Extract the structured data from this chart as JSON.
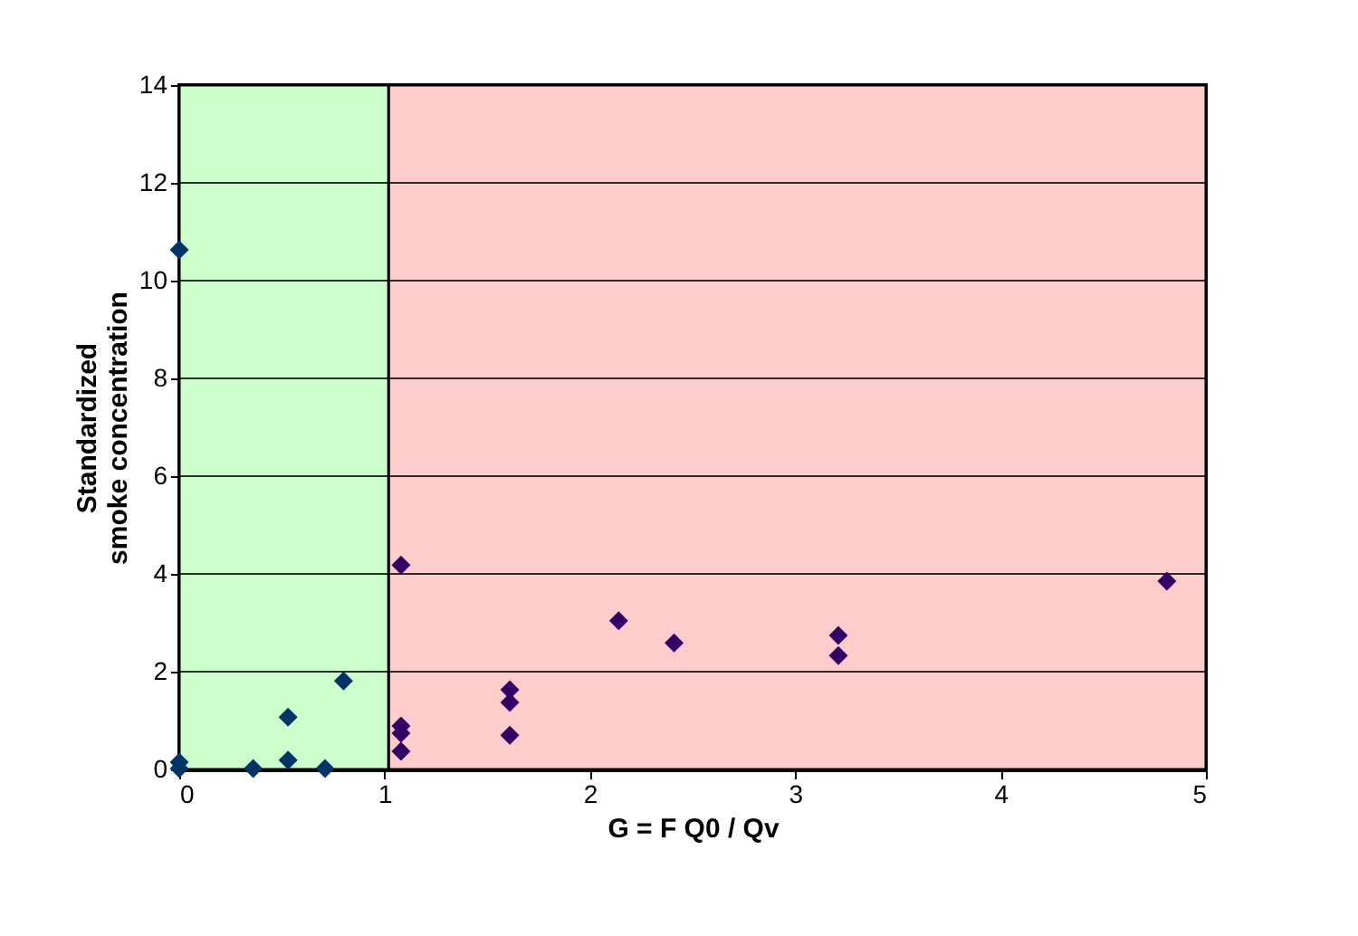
{
  "chart_data": {
    "type": "scatter",
    "xlabel": "G = F Q0 / Qv",
    "ylabel": "Standardized\nsmoke concentration",
    "xlim": [
      0,
      5
    ],
    "xticks": [
      0,
      1,
      2,
      3,
      4,
      5
    ],
    "ylim": [
      0,
      14
    ],
    "yticks": [
      0,
      2,
      4,
      6,
      8,
      10,
      12,
      14
    ],
    "grid": "y",
    "legend": false,
    "marker": "diamond",
    "bands": [
      {
        "axis": "x",
        "from": 0,
        "to": 1.02,
        "color": "#ccffcc"
      },
      {
        "axis": "x",
        "from": 1.02,
        "to": 5,
        "color": "#ffcccc"
      }
    ],
    "series": [
      {
        "color": "#003366",
        "x": [
          0,
          0,
          0,
          0.36,
          0.53,
          0.53,
          0.71,
          0.8
        ],
        "values": [
          10.63,
          0.15,
          0.02,
          0.02,
          1.07,
          0.19,
          0.02,
          1.81
        ]
      },
      {
        "color": "#330066",
        "x": [
          1.08,
          1.08,
          1.08,
          1.08,
          1.61,
          1.61,
          1.61,
          2.14,
          2.41,
          3.21,
          3.21,
          4.81
        ],
        "values": [
          4.18,
          0.89,
          0.74,
          0.37,
          1.63,
          1.37,
          0.7,
          3.04,
          2.59,
          2.74,
          2.33,
          3.85
        ]
      }
    ]
  }
}
